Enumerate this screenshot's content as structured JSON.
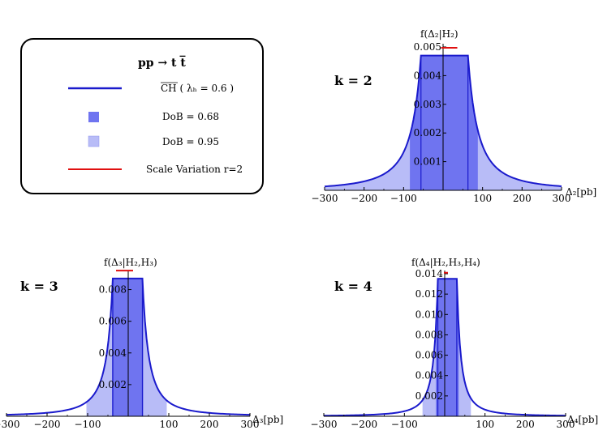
{
  "colors": {
    "curve": "#1a1acc",
    "band68": "#6f74f0",
    "band95": "#b8bcf7",
    "scale": "#e01010",
    "axis": "#000000"
  },
  "legend": {
    "title": "pp → t t̅",
    "items": [
      {
        "label": "CH ( λₕ = 0.6 )",
        "icon": "line"
      },
      {
        "label": "DoB = 0.68",
        "icon": "square-dark"
      },
      {
        "label": "DoB = 0.95",
        "icon": "square-light"
      },
      {
        "label": "Scale Variation r=2",
        "icon": "red-line"
      }
    ]
  },
  "chart_data": [
    {
      "type": "area",
      "k_label": "k = 2",
      "ylabel": "f(Δ₂|H₂)",
      "xlabel": "Δ₂[pb]",
      "xlim": [
        -300,
        300
      ],
      "ylim": [
        0,
        0.005
      ],
      "xticks": [
        -300,
        -200,
        -100,
        100,
        200,
        300
      ],
      "xtick_labels": [
        "−300",
        "−200",
        "−100",
        "100",
        "200",
        "300"
      ],
      "yticks": [
        0.001,
        0.002,
        0.003,
        0.004,
        0.005
      ],
      "ytick_labels": [
        "0.001",
        "0.002",
        "0.003",
        "0.004",
        "0.005"
      ],
      "plateau": [
        -56,
        63
      ],
      "peak": 0.0047,
      "band68": [
        -84,
        88
      ],
      "band95": [
        -300,
        300
      ],
      "scale_variation": [
        -5,
        36,
        0.00497
      ]
    },
    {
      "type": "area",
      "k_label": "k = 3",
      "ylabel": "f(Δ₃|H₂,H₃)",
      "xlabel": "Δ₃[pb]",
      "xlim": [
        -300,
        300
      ],
      "ylim": [
        0,
        0.009
      ],
      "xticks": [
        -300,
        -200,
        -100,
        100,
        200,
        300
      ],
      "xtick_labels": [
        "−300",
        "−200",
        "−100",
        "100",
        "200",
        "300"
      ],
      "yticks": [
        0.002,
        0.004,
        0.006,
        0.008
      ],
      "ytick_labels": [
        "0.002",
        "0.004",
        "0.006",
        "0.008"
      ],
      "plateau": [
        -38,
        35
      ],
      "peak": 0.0087,
      "band68": [
        -40,
        37
      ],
      "band95": [
        -103,
        95
      ],
      "scale_variation": [
        -30,
        12,
        0.0092
      ]
    },
    {
      "type": "area",
      "k_label": "k = 4",
      "ylabel": "f(Δ₄|H₂,H₃,H₄)",
      "xlabel": "Δ₄[pb]",
      "xlim": [
        -300,
        300
      ],
      "ylim": [
        0,
        0.014
      ],
      "xticks": [
        -300,
        -200,
        -100,
        100,
        200,
        300
      ],
      "xtick_labels": [
        "−300",
        "−200",
        "−100",
        "100",
        "200",
        "300"
      ],
      "yticks": [
        0.002,
        0.004,
        0.006,
        0.008,
        0.01,
        0.012,
        0.014
      ],
      "ytick_labels": [
        "0.002",
        "0.004",
        "0.006",
        "0.008",
        "0.010",
        "0.012",
        "0.014"
      ],
      "plateau": [
        -17,
        30
      ],
      "peak": 0.0135,
      "band68": [
        -22,
        35
      ],
      "band95": [
        -55,
        65
      ],
      "scale_variation": [
        -2,
        8,
        0.0141
      ]
    }
  ]
}
